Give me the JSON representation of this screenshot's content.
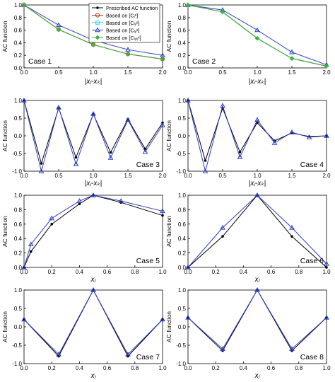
{
  "figure": {
    "ylabel": "AC function",
    "legend": [
      {
        "label": "Prescribed AC function",
        "color": "#000000",
        "marker": "dot"
      },
      {
        "label": "Based on [Cᵢˢ]",
        "color": "#c0392b",
        "marker": "circle"
      },
      {
        "label": "Based on [Cᵢᵧˢ]",
        "color": "#22d3ee",
        "marker": "square"
      },
      {
        "label": "Based on [Cᵢᵧˣ]",
        "color": "#2f3fc4",
        "marker": "triangle"
      },
      {
        "label": "Based on [Cᵢᵧᵧˣ]",
        "color": "#3fb33f",
        "marker": "diamond"
      }
    ]
  },
  "chart_data": [
    {
      "type": "line",
      "title": "Case 1",
      "xlabel": "|xⱼ-xₖ|",
      "xlim": [
        0,
        2
      ],
      "ylim": [
        0,
        1
      ],
      "xticks": [
        "0.0",
        "0.5",
        "1.0",
        "1.5",
        "2.0"
      ],
      "yticks": [
        "0.0",
        "0.2",
        "0.4",
        "0.6",
        "0.8",
        "1.0"
      ],
      "series": [
        {
          "name": "Prescribed AC function",
          "x": [
            0,
            0.5,
            1.0,
            1.5,
            2.0
          ],
          "values": [
            1.0,
            0.61,
            0.37,
            0.22,
            0.14
          ]
        },
        {
          "name": "Based on [Cᵢˢ]",
          "x": [
            0,
            0.5,
            1.0,
            1.5,
            2.0
          ],
          "values": [
            1.0,
            0.61,
            0.37,
            0.22,
            0.14
          ]
        },
        {
          "name": "Based on [Cᵢᵧˣ]",
          "x": [
            0,
            0.5,
            1.0,
            1.5,
            2.0
          ],
          "values": [
            1.0,
            0.68,
            0.44,
            0.29,
            0.2
          ]
        },
        {
          "name": "Based on [Cᵢᵧᵧˣ]",
          "x": [
            0,
            0.5,
            1.0,
            1.5,
            2.0
          ],
          "values": [
            1.0,
            0.61,
            0.37,
            0.22,
            0.14
          ]
        }
      ]
    },
    {
      "type": "line",
      "title": "Case 2",
      "xlabel": "|xⱼ-xₖ|",
      "xlim": [
        0,
        2
      ],
      "ylim": [
        0,
        1
      ],
      "xticks": [
        "0.0",
        "0.5",
        "1.0",
        "1.5",
        "2.0"
      ],
      "yticks": [
        "0.0",
        "0.2",
        "0.4",
        "0.6",
        "0.8",
        "1.0"
      ],
      "series": [
        {
          "name": "Prescribed AC function",
          "x": [
            0,
            0.5,
            1.0,
            1.5,
            2.0
          ],
          "values": [
            1.0,
            0.89,
            0.47,
            0.15,
            0.03
          ]
        },
        {
          "name": "Based on [Cᵢᵧˣ]",
          "x": [
            0,
            0.5,
            1.0,
            1.5,
            2.0
          ],
          "values": [
            1.0,
            0.92,
            0.6,
            0.25,
            0.05
          ]
        },
        {
          "name": "Based on [Cᵢᵧᵧˣ]",
          "x": [
            0,
            0.5,
            1.0,
            1.5,
            2.0
          ],
          "values": [
            1.0,
            0.89,
            0.47,
            0.15,
            0.03
          ]
        }
      ]
    },
    {
      "type": "line",
      "title": "Case 3",
      "xlabel": "|xⱼ-xₖ|",
      "xlim": [
        0,
        2
      ],
      "ylim": [
        -1,
        1
      ],
      "xticks": [
        "0.0",
        "0.5",
        "1.0",
        "1.5",
        "2.0"
      ],
      "yticks": [
        "-1.0",
        "-0.5",
        "0.0",
        "0.5",
        "1.0"
      ],
      "series": [
        {
          "name": "Prescribed AC function",
          "x": [
            0,
            0.25,
            0.5,
            0.75,
            1.0,
            1.25,
            1.5,
            1.75,
            2.0
          ],
          "values": [
            1.0,
            -0.78,
            0.78,
            -0.61,
            0.61,
            -0.47,
            0.47,
            -0.37,
            0.37
          ]
        },
        {
          "name": "Based on [Cᵢᵧˣ]",
          "x": [
            0,
            0.25,
            0.5,
            0.75,
            1.0,
            1.25,
            1.5,
            1.75,
            2.0
          ],
          "values": [
            1.0,
            -1.0,
            0.8,
            -0.8,
            0.62,
            -0.62,
            0.45,
            -0.45,
            0.3
          ]
        }
      ]
    },
    {
      "type": "line",
      "title": "Case 4",
      "xlabel": "|xⱼ-xₖ|",
      "xlim": [
        0,
        2
      ],
      "ylim": [
        -1,
        1
      ],
      "xticks": [
        "0.0",
        "0.5",
        "1.0",
        "1.5",
        "2.0"
      ],
      "yticks": [
        "-1.0",
        "-0.5",
        "0.0",
        "0.5",
        "1.0"
      ],
      "series": [
        {
          "name": "Prescribed AC function",
          "x": [
            0,
            0.25,
            0.5,
            0.75,
            1.0,
            1.25,
            1.5,
            1.75,
            2.0
          ],
          "values": [
            1.0,
            -0.7,
            0.78,
            -0.46,
            0.37,
            -0.14,
            0.08,
            -0.02,
            0.0
          ]
        },
        {
          "name": "Based on [Cᵢᵧˣ]",
          "x": [
            0,
            0.25,
            0.5,
            0.75,
            1.0,
            1.25,
            1.5,
            1.75,
            2.0
          ],
          "values": [
            1.0,
            -1.0,
            0.85,
            -0.6,
            0.45,
            -0.2,
            0.1,
            -0.04,
            0.0
          ]
        }
      ]
    },
    {
      "type": "line",
      "title": "Case 5",
      "xlabel": "xⱼ",
      "xlim": [
        0,
        1
      ],
      "ylim": [
        0,
        1
      ],
      "xticks": [
        "0.0",
        "0.2",
        "0.4",
        "0.6",
        "0.8",
        "1.0"
      ],
      "yticks": [
        "0.0",
        "0.2",
        "0.4",
        "0.6",
        "0.8",
        "1.0"
      ],
      "series": [
        {
          "name": "Prescribed AC function",
          "x": [
            0,
            0.05,
            0.2,
            0.4,
            0.5,
            0.7,
            1.0
          ],
          "values": [
            0.0,
            0.22,
            0.6,
            0.88,
            1.0,
            0.9,
            0.72
          ]
        },
        {
          "name": "Based on [Cᵢᵧˣ]",
          "x": [
            0,
            0.05,
            0.2,
            0.4,
            0.5,
            0.7,
            1.0
          ],
          "values": [
            0.0,
            0.32,
            0.68,
            0.92,
            1.0,
            0.92,
            0.78
          ]
        }
      ]
    },
    {
      "type": "line",
      "title": "Case 6",
      "xlabel": "xⱼ",
      "xlim": [
        0,
        1
      ],
      "ylim": [
        0,
        1
      ],
      "xticks": [
        "0.0",
        "0.2",
        "0.4",
        "0.6",
        "0.8",
        "1.0"
      ],
      "yticks": [
        "0.0",
        "0.2",
        "0.4",
        "0.6",
        "0.8",
        "1.0"
      ],
      "series": [
        {
          "name": "Prescribed AC function",
          "x": [
            0,
            0.25,
            0.5,
            0.75,
            1.0
          ],
          "values": [
            0.0,
            0.43,
            1.0,
            0.43,
            0.0
          ]
        },
        {
          "name": "Based on [Cᵢᵧˣ]",
          "x": [
            0,
            0.25,
            0.5,
            0.75,
            1.0
          ],
          "values": [
            0.0,
            0.55,
            1.0,
            0.55,
            0.05
          ]
        }
      ]
    },
    {
      "type": "line",
      "title": "Case 7",
      "xlabel": "xⱼ",
      "xlim": [
        0,
        1
      ],
      "ylim": [
        -1,
        1
      ],
      "xticks": [
        "0.0",
        "0.2",
        "0.4",
        "0.6",
        "0.8",
        "1.0"
      ],
      "yticks": [
        "-1.0",
        "-0.5",
        "0.0",
        "0.5",
        "1.0"
      ],
      "series": [
        {
          "name": "Prescribed AC function",
          "x": [
            0,
            0.25,
            0.5,
            0.75,
            1.0
          ],
          "values": [
            0.2,
            -0.8,
            1.0,
            -0.8,
            0.2
          ]
        },
        {
          "name": "Based on [Cᵢᵧˣ]",
          "x": [
            0,
            0.25,
            0.5,
            0.75,
            1.0
          ],
          "values": [
            0.2,
            -0.75,
            1.0,
            -0.75,
            0.2
          ]
        }
      ]
    },
    {
      "type": "line",
      "title": "Case 8",
      "xlabel": "xⱼ",
      "xlim": [
        0,
        1
      ],
      "ylim": [
        -1,
        1
      ],
      "xticks": [
        "0.0",
        "0.2",
        "0.4",
        "0.6",
        "0.8",
        "1.0"
      ],
      "yticks": [
        "-1.0",
        "-0.5",
        "0.0",
        "0.5",
        "1.0"
      ],
      "series": [
        {
          "name": "Prescribed AC function",
          "x": [
            0,
            0.25,
            0.5,
            0.75,
            1.0
          ],
          "values": [
            0.25,
            -0.65,
            1.0,
            -0.65,
            0.25
          ]
        },
        {
          "name": "Based on [Cᵢᵧˣ]",
          "x": [
            0,
            0.25,
            0.5,
            0.75,
            1.0
          ],
          "values": [
            0.25,
            -0.6,
            1.0,
            -0.6,
            0.25
          ]
        }
      ]
    }
  ]
}
